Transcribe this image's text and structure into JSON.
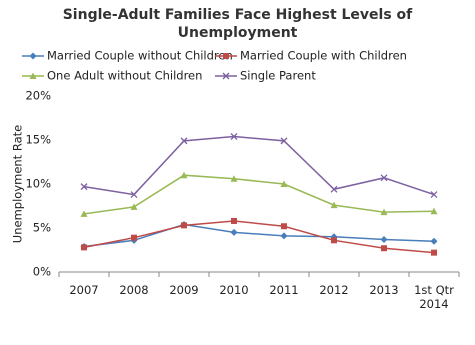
{
  "chart_data": {
    "type": "line",
    "title": "Single-Adult Families Face Highest Levels of Unemployment",
    "y_label": "Unemployment Rate",
    "categories": [
      "2007",
      "2008",
      "2009",
      "2010",
      "2011",
      "2012",
      "2013",
      "1st Qtr 2014"
    ],
    "series": [
      {
        "name": "Married Couple without Children",
        "color": "#4a7ebb",
        "marker": "diamond",
        "values": [
          2.9,
          3.6,
          5.4,
          4.5,
          4.1,
          4.0,
          3.7,
          3.5
        ]
      },
      {
        "name": "Married Couple with Children",
        "color": "#be4b48",
        "marker": "square",
        "values": [
          2.8,
          3.9,
          5.3,
          5.8,
          5.2,
          3.6,
          2.7,
          2.2
        ]
      },
      {
        "name": "One Adult without Children",
        "color": "#98b954",
        "marker": "triangle",
        "values": [
          6.6,
          7.4,
          11.0,
          10.6,
          10.0,
          7.6,
          6.8,
          6.9
        ]
      },
      {
        "name": "Single Parent",
        "color": "#7d60a0",
        "marker": "x",
        "values": [
          9.7,
          8.8,
          14.9,
          15.4,
          14.9,
          9.4,
          10.7,
          8.8
        ]
      }
    ],
    "ylim": [
      0,
      20
    ],
    "yticks": [
      {
        "value": 0,
        "label": "0%"
      },
      {
        "value": 5,
        "label": "5%"
      },
      {
        "value": 10,
        "label": "10%"
      },
      {
        "value": 15,
        "label": "15%"
      },
      {
        "value": 20,
        "label": "20%"
      }
    ],
    "grid": false
  }
}
